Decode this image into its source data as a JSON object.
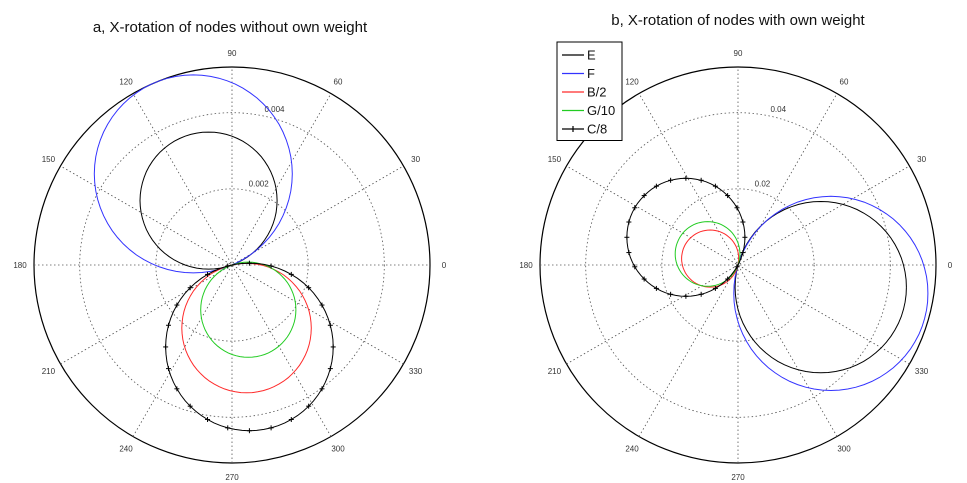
{
  "chart_data": [
    {
      "type": "polar-line",
      "title": "a, X-rotation of nodes without own weight",
      "angle_ticks": [
        "0",
        "30",
        "60",
        "90",
        "120",
        "150",
        "180",
        "210",
        "240",
        "270",
        "300",
        "330"
      ],
      "r_ticks": [
        "0.002",
        "0.004"
      ],
      "rmax": 0.0052,
      "grid": true,
      "series": [
        {
          "name": "E",
          "color": "#000000",
          "marker": false,
          "shape": "circle",
          "diameter": 0.0036,
          "direction_deg": 110
        },
        {
          "name": "F",
          "color": "#3333ff",
          "marker": false,
          "shape": "circle",
          "diameter": 0.0052,
          "direction_deg": 113
        },
        {
          "name": "B/2",
          "color": "#ff2a2a",
          "marker": false,
          "shape": "circle",
          "diameter": 0.0034,
          "direction_deg": 283
        },
        {
          "name": "G/10",
          "color": "#22cc22",
          "marker": false,
          "shape": "circle",
          "diameter": 0.0025,
          "direction_deg": 290
        },
        {
          "name": "C/8",
          "color": "#000000",
          "marker": true,
          "shape": "circle",
          "diameter": 0.0044,
          "direction_deg": 282
        }
      ]
    },
    {
      "type": "polar-line",
      "title": "b, X-rotation of nodes with own weight",
      "angle_ticks": [
        "0",
        "30",
        "60",
        "90",
        "120",
        "150",
        "180",
        "210",
        "240",
        "270",
        "300",
        "330"
      ],
      "r_ticks": [
        "0.02",
        "0.04"
      ],
      "rmax": 0.052,
      "grid": true,
      "legend": {
        "placement": "top-left",
        "entries": [
          "E",
          "F",
          "B/2",
          "G/10",
          "C/8"
        ]
      },
      "series": [
        {
          "name": "E",
          "color": "#000000",
          "marker": false,
          "shape": "circle",
          "diameter": 0.045,
          "direction_deg": -15
        },
        {
          "name": "F",
          "color": "#3333ff",
          "marker": false,
          "shape": "circle",
          "diameter": 0.051,
          "direction_deg": -17
        },
        {
          "name": "B/2",
          "color": "#ff2a2a",
          "marker": false,
          "shape": "circle",
          "diameter": 0.015,
          "direction_deg": 167
        },
        {
          "name": "G/10",
          "color": "#22cc22",
          "marker": false,
          "shape": "circle",
          "diameter": 0.017,
          "direction_deg": 160
        },
        {
          "name": "C/8",
          "color": "#000000",
          "marker": true,
          "shape": "circle",
          "diameter": 0.031,
          "direction_deg": 152
        }
      ]
    }
  ]
}
